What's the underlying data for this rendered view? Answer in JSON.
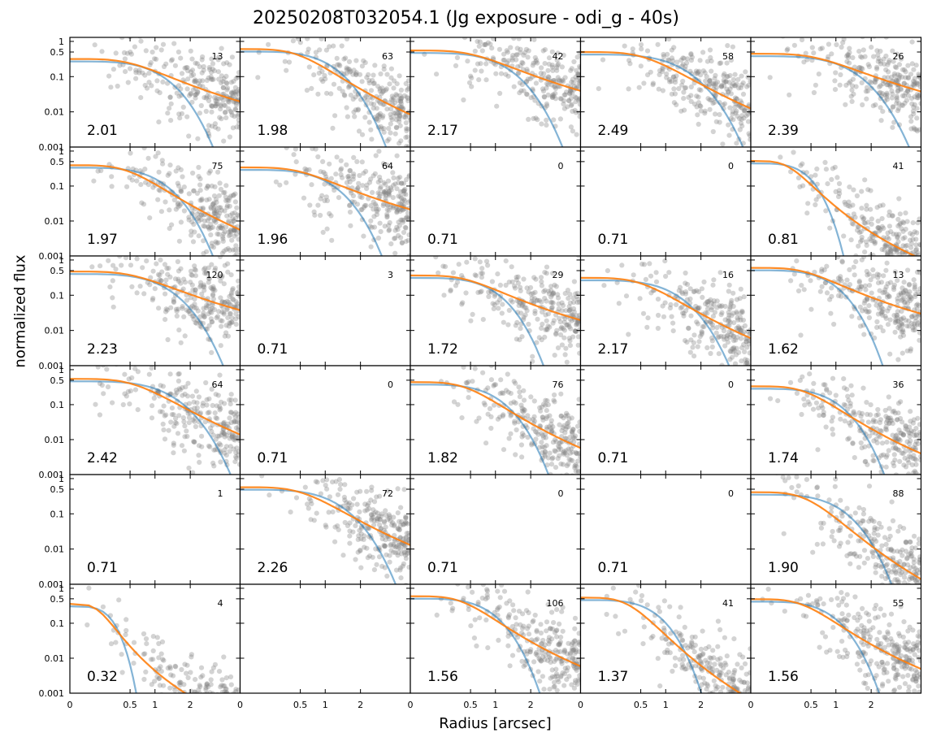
{
  "title": "20250208T032054.1 (Jg exposure - odi_g - 40s)",
  "xlabel": "Radius [arcsec]",
  "ylabel": "normalized flux",
  "colors": {
    "points": "#808080",
    "moffat_fit": "#ff7f0e",
    "gaussian_fit": "#1f77b4"
  },
  "chart_data": {
    "type": "scatter",
    "layout": "grid of 6 rows x 5 columns, shared axes",
    "x_scale": "sqrt-like",
    "y_scale": "log",
    "xlim": [
      0,
      4
    ],
    "ylim": [
      0.001,
      1.3
    ],
    "x_ticks": [
      0,
      0.5,
      1,
      2
    ],
    "x_tick_labels": [
      "0",
      "0.5",
      "1",
      "2"
    ],
    "y_ticks": [
      0.001,
      0.01,
      0.1,
      0.5,
      1
    ],
    "y_tick_labels": [
      "0.001",
      "0.01",
      "0.1",
      "0.5",
      "1"
    ],
    "series": [
      {
        "name": "",
        "kind": "scatter",
        "color": "#808080"
      },
      {
        "name": "",
        "kind": "line",
        "color": "#ff7f0e"
      },
      {
        "name": "",
        "kind": "line",
        "color": "#1f77b4"
      }
    ],
    "panels": [
      {
        "row": 0,
        "col": 0,
        "fwhm": "2.01",
        "count": "13"
      },
      {
        "row": 0,
        "col": 1,
        "fwhm": "1.98",
        "count": "63"
      },
      {
        "row": 0,
        "col": 2,
        "fwhm": "2.17",
        "count": "42"
      },
      {
        "row": 0,
        "col": 3,
        "fwhm": "2.49",
        "count": "58"
      },
      {
        "row": 0,
        "col": 4,
        "fwhm": "2.39",
        "count": "26"
      },
      {
        "row": 1,
        "col": 0,
        "fwhm": "1.97",
        "count": "75"
      },
      {
        "row": 1,
        "col": 1,
        "fwhm": "1.96",
        "count": "64"
      },
      {
        "row": 1,
        "col": 2,
        "fwhm": "0.71",
        "count": "0"
      },
      {
        "row": 1,
        "col": 3,
        "fwhm": "0.71",
        "count": "0"
      },
      {
        "row": 1,
        "col": 4,
        "fwhm": "0.81",
        "count": "41"
      },
      {
        "row": 2,
        "col": 0,
        "fwhm": "2.23",
        "count": "120"
      },
      {
        "row": 2,
        "col": 1,
        "fwhm": "0.71",
        "count": "3"
      },
      {
        "row": 2,
        "col": 2,
        "fwhm": "1.72",
        "count": "29"
      },
      {
        "row": 2,
        "col": 3,
        "fwhm": "2.17",
        "count": "16"
      },
      {
        "row": 2,
        "col": 4,
        "fwhm": "1.62",
        "count": "13"
      },
      {
        "row": 3,
        "col": 0,
        "fwhm": "2.42",
        "count": "64"
      },
      {
        "row": 3,
        "col": 1,
        "fwhm": "0.71",
        "count": "0"
      },
      {
        "row": 3,
        "col": 2,
        "fwhm": "1.82",
        "count": "76"
      },
      {
        "row": 3,
        "col": 3,
        "fwhm": "0.71",
        "count": "0"
      },
      {
        "row": 3,
        "col": 4,
        "fwhm": "1.74",
        "count": "36"
      },
      {
        "row": 4,
        "col": 0,
        "fwhm": "0.71",
        "count": "1"
      },
      {
        "row": 4,
        "col": 1,
        "fwhm": "2.26",
        "count": "72"
      },
      {
        "row": 4,
        "col": 2,
        "fwhm": "0.71",
        "count": "0"
      },
      {
        "row": 4,
        "col": 3,
        "fwhm": "0.71",
        "count": "0"
      },
      {
        "row": 4,
        "col": 4,
        "fwhm": "1.90",
        "count": "88"
      },
      {
        "row": 5,
        "col": 0,
        "fwhm": "0.32",
        "count": "4"
      },
      {
        "row": 5,
        "col": 1,
        "fwhm": "",
        "count": ""
      },
      {
        "row": 5,
        "col": 2,
        "fwhm": "1.56",
        "count": "106"
      },
      {
        "row": 5,
        "col": 3,
        "fwhm": "1.37",
        "count": "41"
      },
      {
        "row": 5,
        "col": 4,
        "fwhm": "1.56",
        "count": "55"
      }
    ]
  }
}
